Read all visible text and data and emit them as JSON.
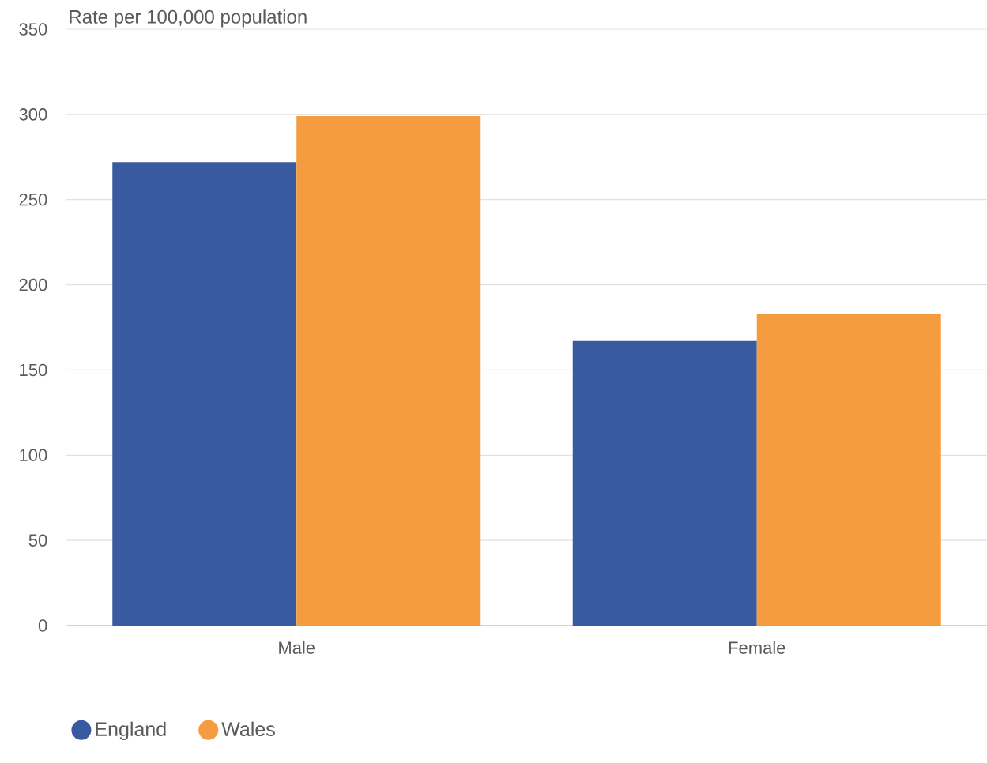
{
  "chart_data": {
    "type": "bar",
    "ylabel": "Rate per 100,000 population",
    "categories": [
      "Male",
      "Female"
    ],
    "series": [
      {
        "name": "England",
        "color": "#3a5a9f",
        "values": [
          272,
          167
        ]
      },
      {
        "name": "Wales",
        "color": "#f59c40",
        "values": [
          299,
          183
        ]
      }
    ],
    "ylim": [
      0,
      350
    ],
    "yticks": [
      0,
      50,
      100,
      150,
      200,
      250,
      300,
      350
    ],
    "grid": "y",
    "legend": "bottom left"
  }
}
